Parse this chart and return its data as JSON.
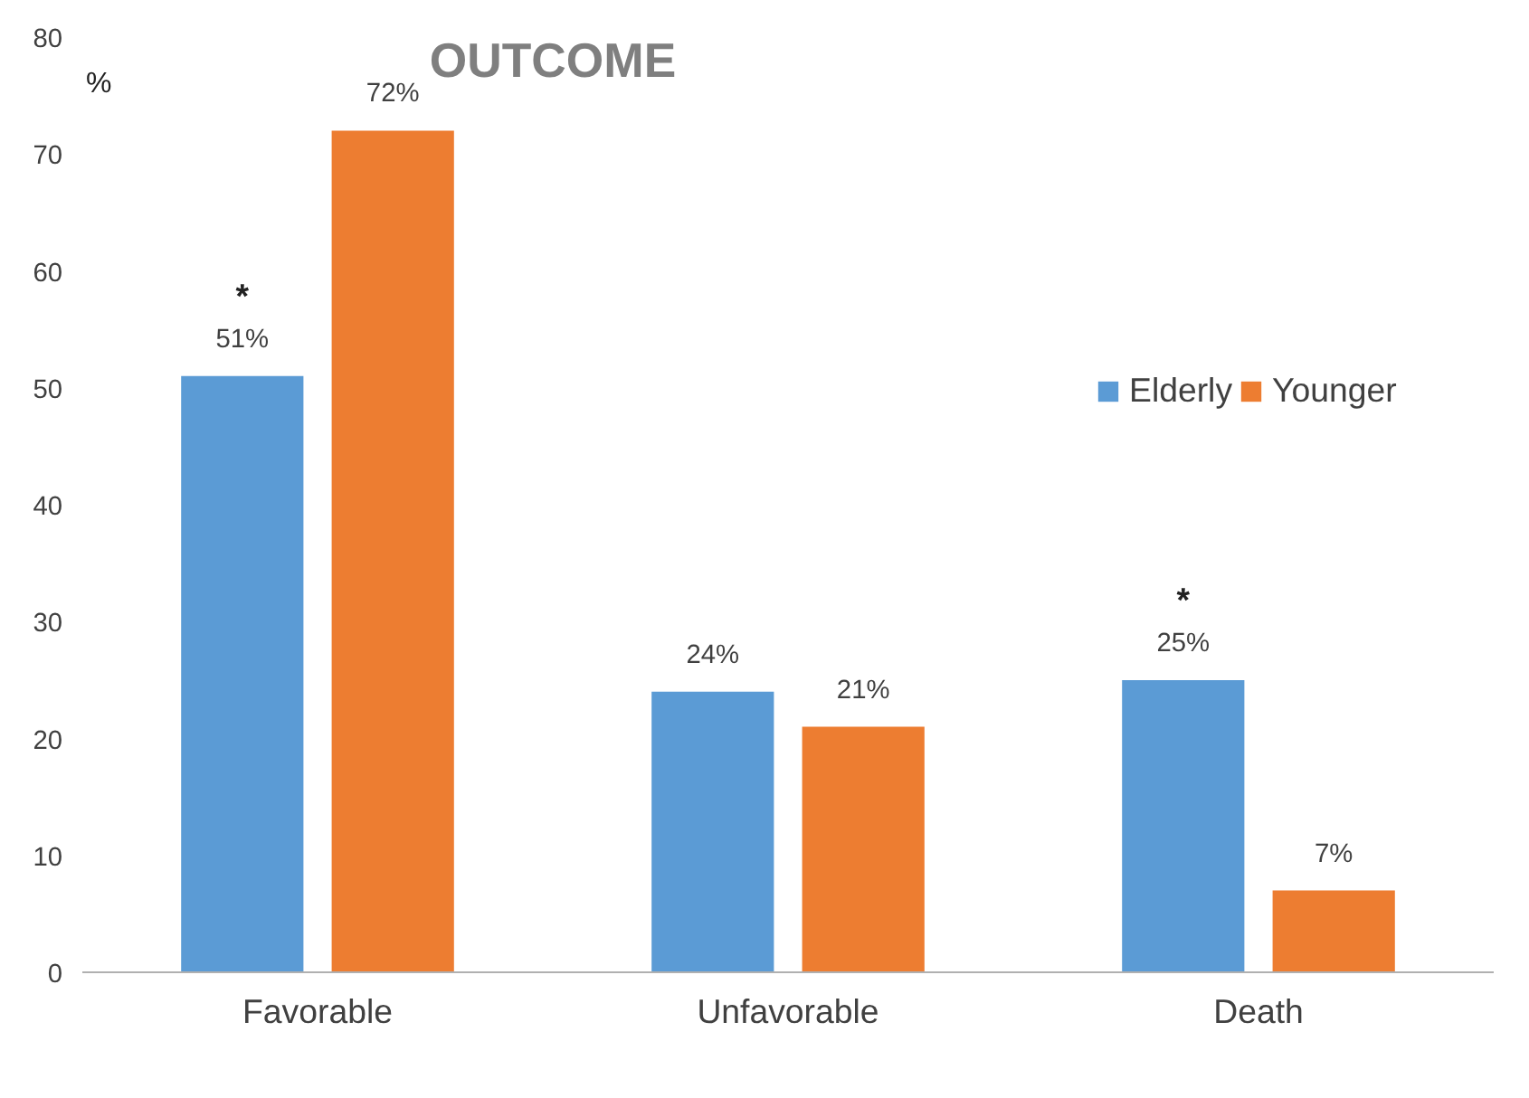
{
  "chart_data": {
    "type": "bar",
    "title": "OUTCOME",
    "ylabel": "%",
    "categories": [
      "Favorable",
      "Unfavorable",
      "Death"
    ],
    "series": [
      {
        "name": "Elderly",
        "color": "#5b9bd5",
        "values": [
          51,
          24,
          25
        ],
        "value_labels": [
          "51%",
          "24%",
          "25%"
        ]
      },
      {
        "name": "Younger",
        "color": "#ed7d31",
        "values": [
          72,
          21,
          7
        ],
        "value_labels": [
          "72%",
          "21%",
          "7%"
        ]
      }
    ],
    "annotations": [
      "*",
      "*"
    ],
    "ylim": [
      0,
      80
    ],
    "yticks": [
      0,
      10,
      20,
      30,
      40,
      50,
      60,
      70,
      80
    ],
    "grid": false,
    "legend": "right"
  }
}
